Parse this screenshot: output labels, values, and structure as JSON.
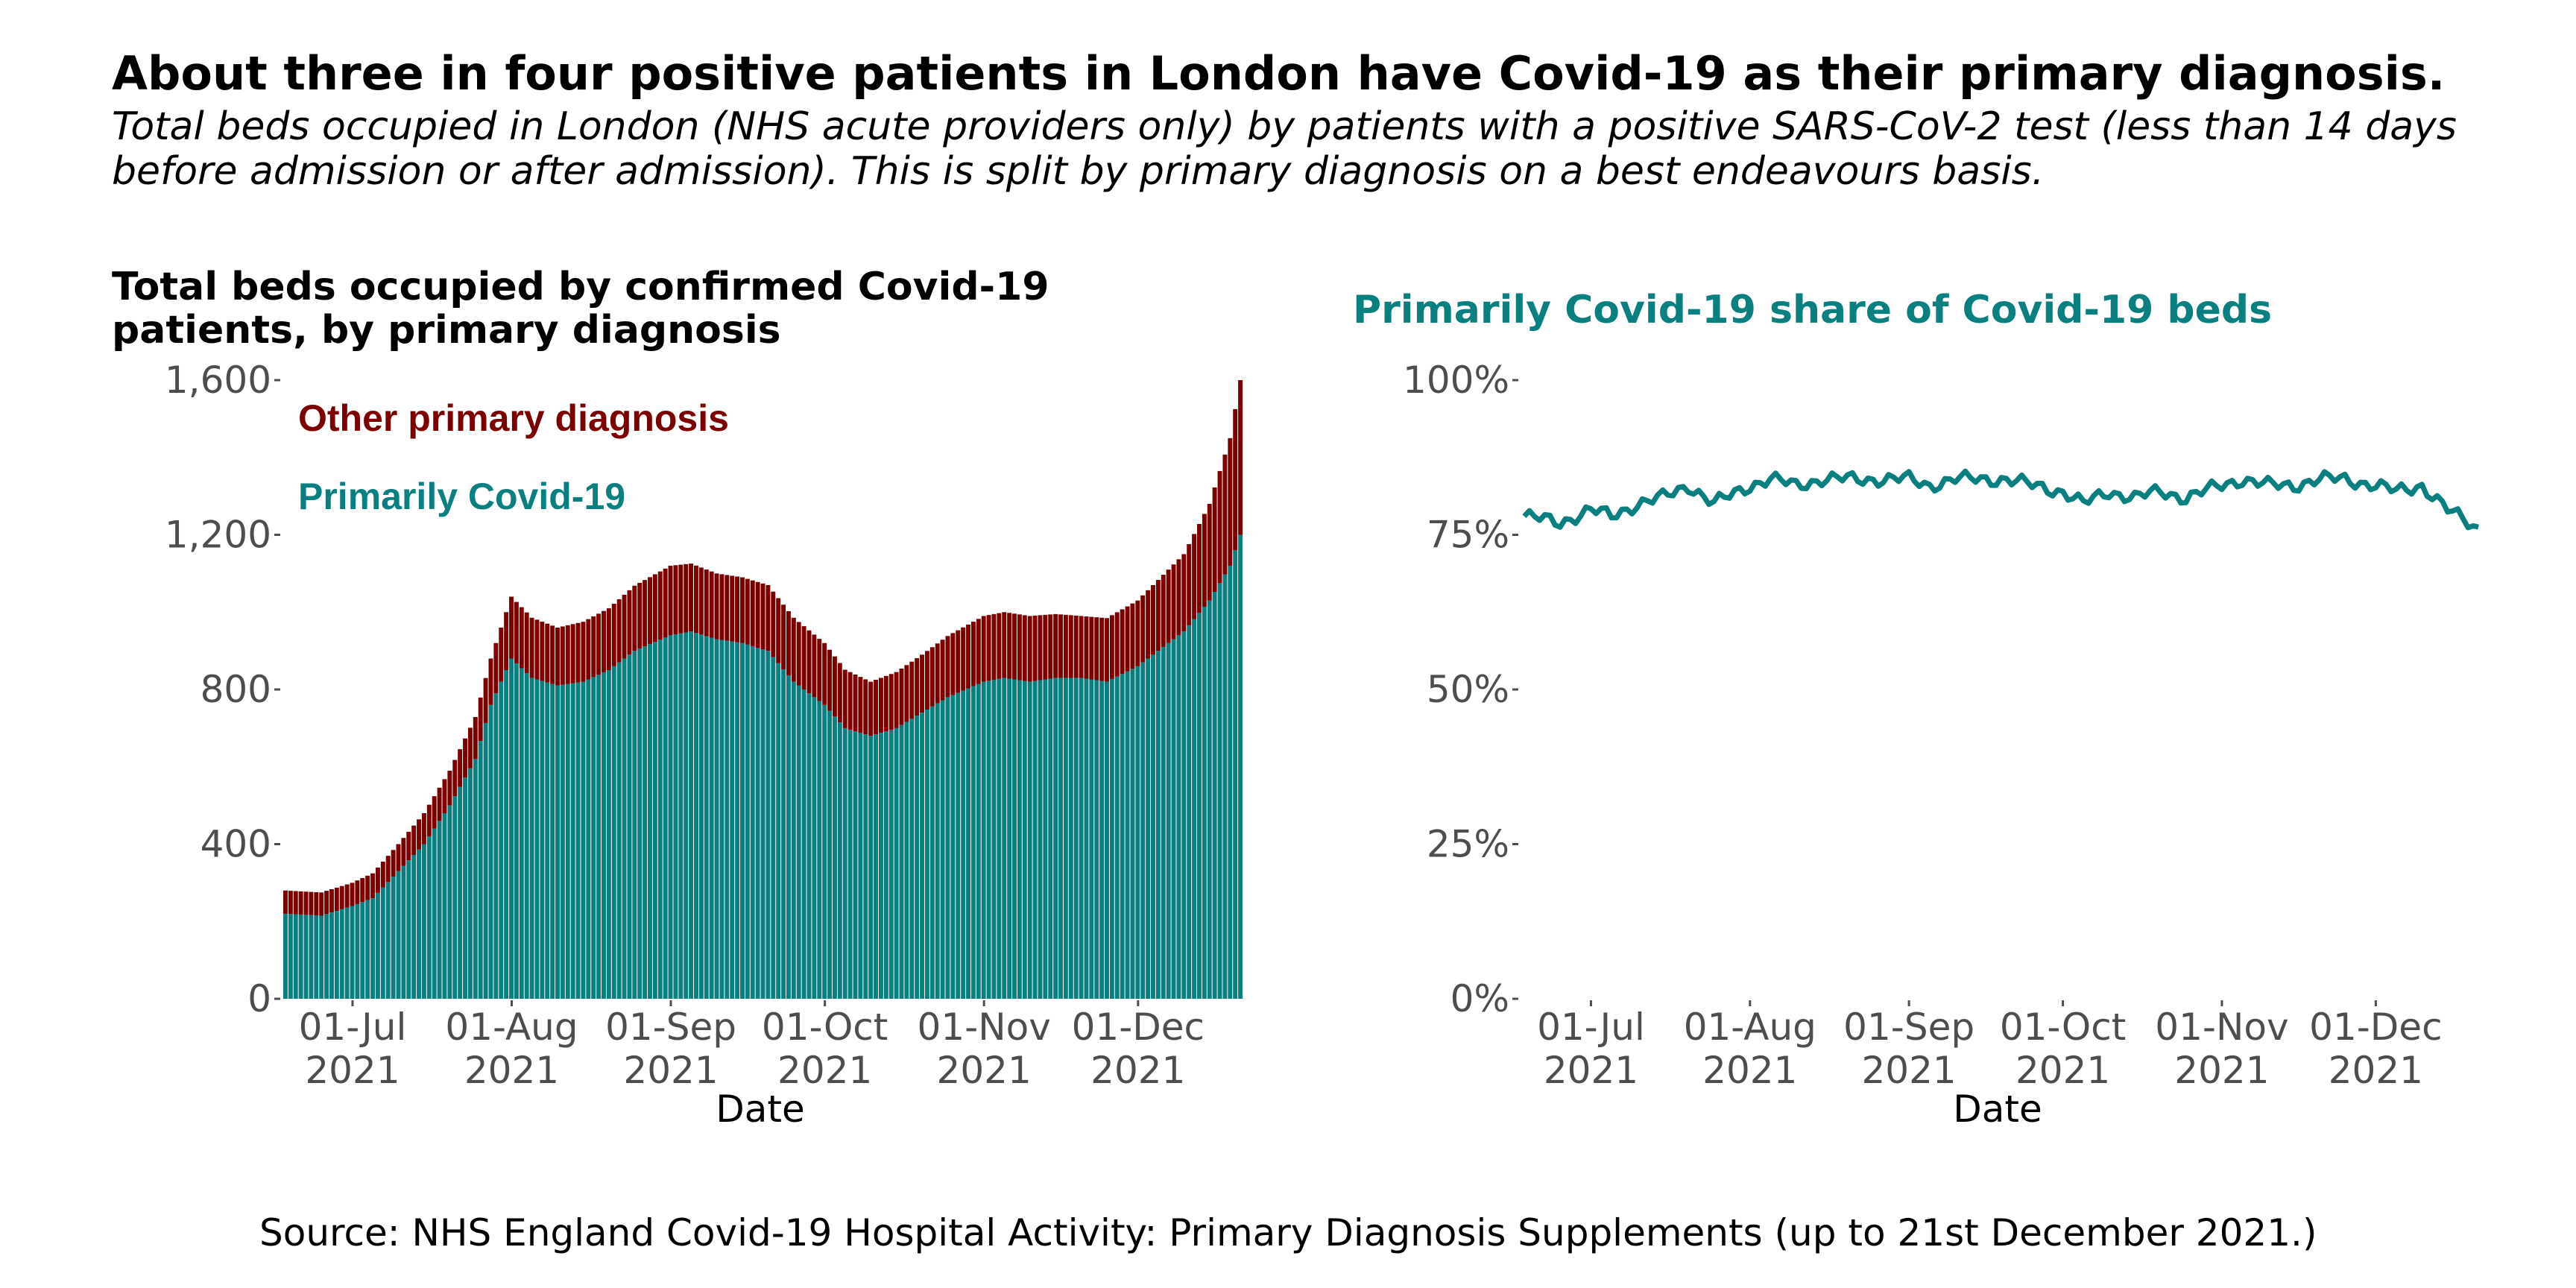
{
  "header": {
    "title": "About three in four positive patients in London have Covid-19 as their primary diagnosis.",
    "subtitle": "Total beds occupied in London (NHS acute providers only) by patients with a positive SARS-CoV-2 test (less than 14 days before admission or after admission). This is split by primary diagnosis on a best endeavours basis."
  },
  "source": "Source: NHS England Covid-19 Hospital Activity: Primary Diagnosis Supplements (up to 21st December 2021.)",
  "colors": {
    "primary": "#0a7f80",
    "other": "#7d0000",
    "axis": "#4d4d4d"
  },
  "chart_data": [
    {
      "type": "bar",
      "stacked": true,
      "title": "Total beds occupied by confirmed Covid-19 patients, by primary diagnosis",
      "xlabel": "Date",
      "ylabel": "",
      "ylim": [
        0,
        1600
      ],
      "yticks": [
        0,
        400,
        800,
        1200,
        1600
      ],
      "ytick_labels": [
        "0",
        "400",
        "800",
        "1,200",
        "1,600"
      ],
      "xticks": [
        {
          "date": "2021-07-01",
          "label1": "01-Jul",
          "label2": "2021"
        },
        {
          "date": "2021-08-01",
          "label1": "01-Aug",
          "label2": "2021"
        },
        {
          "date": "2021-09-01",
          "label1": "01-Sep",
          "label2": "2021"
        },
        {
          "date": "2021-10-01",
          "label1": "01-Oct",
          "label2": "2021"
        },
        {
          "date": "2021-11-01",
          "label1": "01-Nov",
          "label2": "2021"
        },
        {
          "date": "2021-12-01",
          "label1": "01-Dec",
          "label2": "2021"
        }
      ],
      "date_range": [
        "2021-06-18",
        "2021-12-21"
      ],
      "annotations": [
        {
          "text": "Other primary diagnosis",
          "series": "Other primary diagnosis"
        },
        {
          "text": "Primarily Covid-19",
          "series": "Primarily Covid-19"
        }
      ],
      "grid": false,
      "series": [
        {
          "name": "Primarily Covid-19",
          "color": "#0a7f80",
          "keyframes": [
            [
              "2021-06-18",
              220
            ],
            [
              "2021-06-25",
              215
            ],
            [
              "2021-07-01",
              240
            ],
            [
              "2021-07-05",
              260
            ],
            [
              "2021-07-10",
              330
            ],
            [
              "2021-07-15",
              400
            ],
            [
              "2021-07-20",
              500
            ],
            [
              "2021-07-25",
              620
            ],
            [
              "2021-07-28",
              760
            ],
            [
              "2021-08-01",
              880
            ],
            [
              "2021-08-05",
              830
            ],
            [
              "2021-08-10",
              810
            ],
            [
              "2021-08-15",
              820
            ],
            [
              "2021-08-20",
              850
            ],
            [
              "2021-08-25",
              900
            ],
            [
              "2021-09-01",
              940
            ],
            [
              "2021-09-05",
              950
            ],
            [
              "2021-09-10",
              930
            ],
            [
              "2021-09-15",
              920
            ],
            [
              "2021-09-20",
              900
            ],
            [
              "2021-09-25",
              820
            ],
            [
              "2021-10-01",
              760
            ],
            [
              "2021-10-05",
              700
            ],
            [
              "2021-10-10",
              680
            ],
            [
              "2021-10-15",
              700
            ],
            [
              "2021-10-20",
              740
            ],
            [
              "2021-10-25",
              780
            ],
            [
              "2021-11-01",
              820
            ],
            [
              "2021-11-05",
              830
            ],
            [
              "2021-11-10",
              820
            ],
            [
              "2021-11-15",
              830
            ],
            [
              "2021-11-20",
              830
            ],
            [
              "2021-11-25",
              820
            ],
            [
              "2021-12-01",
              860
            ],
            [
              "2021-12-05",
              900
            ],
            [
              "2021-12-10",
              950
            ],
            [
              "2021-12-15",
              1030
            ],
            [
              "2021-12-19",
              1120
            ],
            [
              "2021-12-21",
              1200
            ]
          ]
        },
        {
          "name": "Other primary diagnosis",
          "color": "#7d0000",
          "keyframes": [
            [
              "2021-06-18",
              60
            ],
            [
              "2021-06-25",
              60
            ],
            [
              "2021-07-01",
              60
            ],
            [
              "2021-07-10",
              70
            ],
            [
              "2021-07-20",
              90
            ],
            [
              "2021-07-28",
              120
            ],
            [
              "2021-08-01",
              160
            ],
            [
              "2021-08-10",
              150
            ],
            [
              "2021-08-20",
              160
            ],
            [
              "2021-09-01",
              180
            ],
            [
              "2021-09-10",
              170
            ],
            [
              "2021-09-20",
              170
            ],
            [
              "2021-10-01",
              160
            ],
            [
              "2021-10-10",
              140
            ],
            [
              "2021-10-20",
              150
            ],
            [
              "2021-11-01",
              170
            ],
            [
              "2021-11-10",
              170
            ],
            [
              "2021-11-20",
              160
            ],
            [
              "2021-12-01",
              170
            ],
            [
              "2021-12-10",
              200
            ],
            [
              "2021-12-15",
              250
            ],
            [
              "2021-12-19",
              330
            ],
            [
              "2021-12-21",
              400
            ]
          ]
        }
      ]
    },
    {
      "type": "line",
      "title": "Primarily Covid-19 share of Covid-19 beds",
      "xlabel": "Date",
      "ylabel": "",
      "ylim": [
        0,
        100
      ],
      "yticks": [
        0,
        25,
        50,
        75,
        100
      ],
      "ytick_labels": [
        "0%",
        "25%",
        "50%",
        "75%",
        "100%"
      ],
      "xticks": [
        {
          "date": "2021-07-01",
          "label1": "01-Jul",
          "label2": "2021"
        },
        {
          "date": "2021-08-01",
          "label1": "01-Aug",
          "label2": "2021"
        },
        {
          "date": "2021-09-01",
          "label1": "01-Sep",
          "label2": "2021"
        },
        {
          "date": "2021-10-01",
          "label1": "01-Oct",
          "label2": "2021"
        },
        {
          "date": "2021-11-01",
          "label1": "01-Nov",
          "label2": "2021"
        },
        {
          "date": "2021-12-01",
          "label1": "01-Dec",
          "label2": "2021"
        }
      ],
      "date_range": [
        "2021-06-18",
        "2021-12-21"
      ],
      "grid": false,
      "series": [
        {
          "color": "#0a7f80",
          "keyframes": [
            [
              "2021-06-18",
              78
            ],
            [
              "2021-06-25",
              77
            ],
            [
              "2021-07-01",
              79
            ],
            [
              "2021-07-05",
              78
            ],
            [
              "2021-07-10",
              80
            ],
            [
              "2021-07-15",
              81
            ],
            [
              "2021-07-20",
              83
            ],
            [
              "2021-07-25",
              80
            ],
            [
              "2021-08-01",
              83
            ],
            [
              "2021-08-05",
              84
            ],
            [
              "2021-08-10",
              83
            ],
            [
              "2021-08-15",
              84
            ],
            [
              "2021-08-20",
              84
            ],
            [
              "2021-08-25",
              84
            ],
            [
              "2021-09-01",
              84
            ],
            [
              "2021-09-05",
              83
            ],
            [
              "2021-09-10",
              84
            ],
            [
              "2021-09-15",
              84
            ],
            [
              "2021-09-20",
              84
            ],
            [
              "2021-09-25",
              83
            ],
            [
              "2021-10-01",
              82
            ],
            [
              "2021-10-05",
              80
            ],
            [
              "2021-10-10",
              82
            ],
            [
              "2021-10-15",
              81
            ],
            [
              "2021-10-20",
              82
            ],
            [
              "2021-10-25",
              81
            ],
            [
              "2021-11-01",
              83
            ],
            [
              "2021-11-05",
              84
            ],
            [
              "2021-11-10",
              83
            ],
            [
              "2021-11-15",
              83
            ],
            [
              "2021-11-20",
              84
            ],
            [
              "2021-11-25",
              84
            ],
            [
              "2021-12-01",
              83
            ],
            [
              "2021-12-05",
              82
            ],
            [
              "2021-12-10",
              83
            ],
            [
              "2021-12-15",
              79
            ],
            [
              "2021-12-19",
              77
            ],
            [
              "2021-12-21",
              76
            ]
          ]
        }
      ]
    }
  ]
}
